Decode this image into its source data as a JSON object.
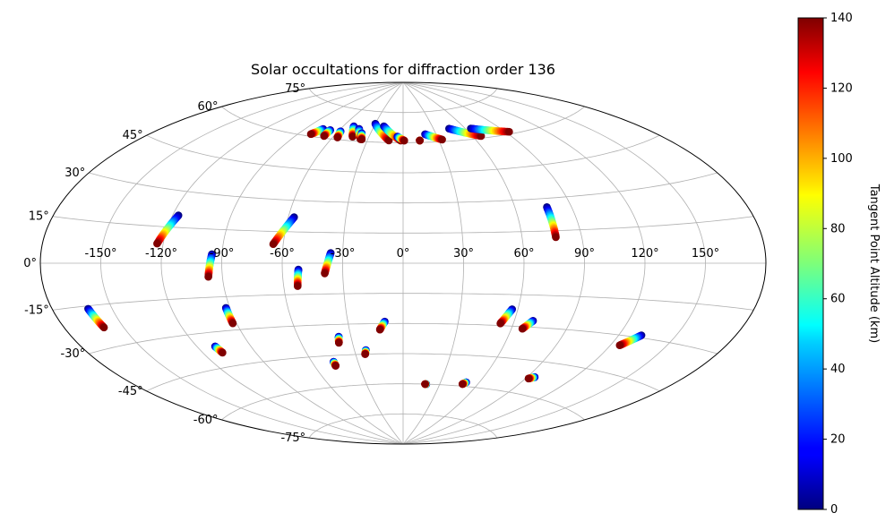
{
  "chart_data": {
    "type": "scatter",
    "projection": "aitoff",
    "title": "Solar occultations for diffraction order 136",
    "xlabel": "",
    "ylabel": "",
    "grid": true,
    "longitude_ticks": [
      "-150°",
      "-120°",
      "-90°",
      "-60°",
      "-30°",
      "0°",
      "30°",
      "60°",
      "90°",
      "120°",
      "150°"
    ],
    "latitude_ticks": [
      "-75°",
      "-60°",
      "-45°",
      "-30°",
      "-15°",
      "0°",
      "15°",
      "30°",
      "45°",
      "60°",
      "75°"
    ],
    "colorbar": {
      "label": "Tangent Point Altitude (km)",
      "min": 0,
      "max": 140,
      "ticks": [
        "0",
        "20",
        "40",
        "60",
        "80",
        "100",
        "120",
        "140"
      ],
      "colormap": "jet"
    },
    "alt_range": [
      0,
      140
    ],
    "tracks": [
      {
        "lon": [
          -117,
          -123
        ],
        "lat": [
          20,
          8
        ]
      },
      {
        "lon": [
          -57,
          -65
        ],
        "lat": [
          22,
          9
        ]
      },
      {
        "lon": [
          -95,
          -97
        ],
        "lat": [
          4,
          -6
        ]
      },
      {
        "lon": [
          -52,
          -53
        ],
        "lat": [
          -3,
          -11
        ]
      },
      {
        "lon": [
          -36,
          -39
        ],
        "lat": [
          5,
          -5
        ]
      },
      {
        "lon": [
          77,
          77
        ],
        "lat": [
          26,
          12
        ]
      },
      {
        "lon": [
          -162,
          -160
        ],
        "lat": [
          -16,
          -23
        ]
      },
      {
        "lon": [
          -92,
          -92
        ],
        "lat": [
          -20,
          -27
        ]
      },
      {
        "lon": [
          -10,
          -13
        ],
        "lat": [
          -29,
          -33
        ]
      },
      {
        "lon": [
          57,
          53
        ],
        "lat": [
          -22,
          -29
        ]
      },
      {
        "lon": [
          70,
          66
        ],
        "lat": [
          -27,
          -31
        ]
      },
      {
        "lon": [
          132,
          125
        ],
        "lat": [
          -29,
          -34
        ]
      },
      {
        "lon": [
          -110,
          -109
        ],
        "lat": [
          -36,
          -39
        ]
      },
      {
        "lon": [
          -37,
          -38
        ],
        "lat": [
          -36,
          -39
        ]
      },
      {
        "lon": [
          -23,
          -24
        ],
        "lat": [
          -43,
          -45
        ]
      },
      {
        "lon": [
          -46,
          -46
        ],
        "lat": [
          -48,
          -50
        ]
      },
      {
        "lon": [
          19,
          18
        ],
        "lat": [
          -60,
          -60
        ]
      },
      {
        "lon": [
          50,
          48
        ],
        "lat": [
          -58,
          -59
        ]
      },
      {
        "lon": [
          95,
          92
        ],
        "lat": [
          -52,
          -53
        ]
      },
      {
        "lon": [
          -75,
          -80
        ],
        "lat": [
          64,
          61
        ]
      },
      {
        "lon": [
          -68,
          -68
        ],
        "lat": [
          64,
          61
        ]
      },
      {
        "lon": [
          -58,
          -56
        ],
        "lat": [
          64,
          61
        ]
      },
      {
        "lon": [
          -50,
          -44
        ],
        "lat": [
          67,
          62
        ]
      },
      {
        "lon": [
          -43,
          -36
        ],
        "lat": [
          66,
          61
        ]
      },
      {
        "lon": [
          -38,
          -35
        ],
        "lat": [
          64,
          61
        ]
      },
      {
        "lon": [
          -30,
          -12
        ],
        "lat": [
          69,
          61
        ]
      },
      {
        "lon": [
          -20,
          -2
        ],
        "lat": [
          68,
          61
        ]
      },
      {
        "lon": [
          -5,
          1
        ],
        "lat": [
          63,
          61
        ]
      },
      {
        "lon": [
          14,
          14
        ],
        "lat": [
          61,
          61
        ]
      },
      {
        "lon": [
          20,
          33
        ],
        "lat": [
          64,
          61
        ]
      },
      {
        "lon": [
          45,
          67
        ],
        "lat": [
          66,
          61
        ]
      },
      {
        "lon": [
          65,
          93
        ],
        "lat": [
          65,
          61
        ]
      }
    ]
  }
}
